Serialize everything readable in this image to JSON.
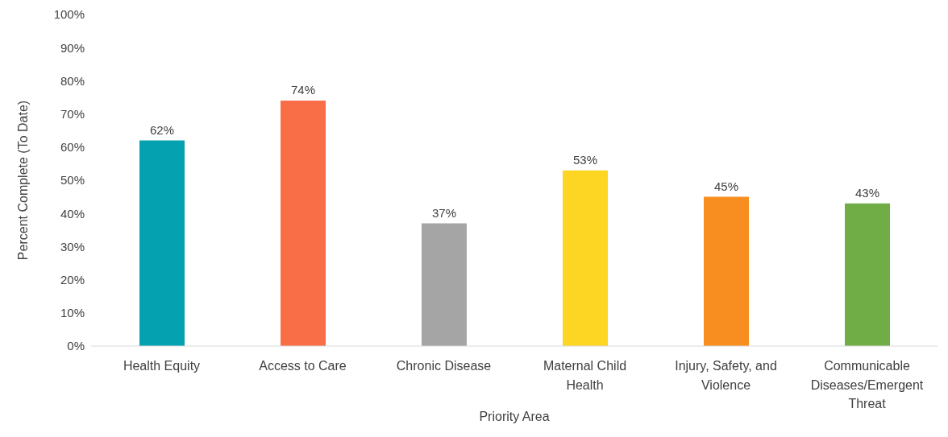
{
  "chart_data": {
    "type": "bar",
    "xlabel": "Priority Area",
    "ylabel": "Percent Complete (To Date)",
    "categories": [
      "Health Equity",
      "Access to Care",
      "Chronic Disease",
      "Maternal Child Health",
      "Injury, Safety, and Violence",
      "Communicable Diseases/Emergent Threat"
    ],
    "values": [
      62,
      74,
      37,
      53,
      45,
      43
    ],
    "colors": [
      "#04a1b0",
      "#f96d47",
      "#a5a5a5",
      "#fdd523",
      "#f78e1f",
      "#70ad47"
    ],
    "value_labels": [
      "62%",
      "74%",
      "37%",
      "53%",
      "45%",
      "43%"
    ],
    "ylim": [
      0,
      100
    ],
    "yticks": [
      {
        "value": 0,
        "label": "0%"
      },
      {
        "value": 10,
        "label": "10%"
      },
      {
        "value": 20,
        "label": "20%"
      },
      {
        "value": 30,
        "label": "30%"
      },
      {
        "value": 40,
        "label": "40%"
      },
      {
        "value": 50,
        "label": "50%"
      },
      {
        "value": 60,
        "label": "60%"
      },
      {
        "value": 70,
        "label": "70%"
      },
      {
        "value": 80,
        "label": "80%"
      },
      {
        "value": 90,
        "label": "90%"
      },
      {
        "value": 100,
        "label": "100%"
      }
    ]
  }
}
